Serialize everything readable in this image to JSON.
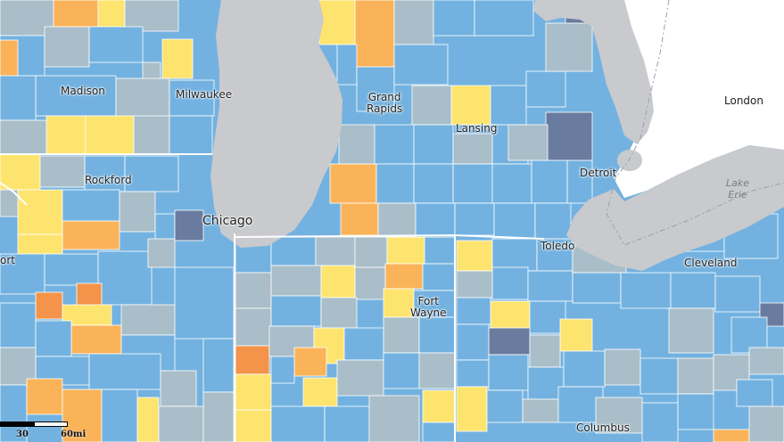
{
  "map": {
    "colors": {
      "water": "#c9cacd",
      "neutral_land": "#ffffff",
      "light_blue": "#73b2e0",
      "gray_blue": "#a9bec9",
      "yellow": "#fde46f",
      "orange": "#fbb35a",
      "dark_orange": "#f3944a",
      "dark_blue": "#6a7ba0",
      "boundary": "#ffffff"
    },
    "places": {
      "madison": "Madison",
      "milwaukee": "Milwaukee",
      "grand_rapids": "Grand\nRapids",
      "lansing": "Lansing",
      "london": "London",
      "rockford": "Rockford",
      "detroit": "Detroit",
      "lake_erie": "Lake\nErie",
      "chicago": "Chicago",
      "toledo": "Toledo",
      "cleveland": "Cleveland",
      "fort": "ort",
      "fort_wayne": "Fort\nWayne",
      "columbus": "Columbus"
    },
    "scale": {
      "left_label": "30",
      "right_label": "60mi"
    }
  }
}
